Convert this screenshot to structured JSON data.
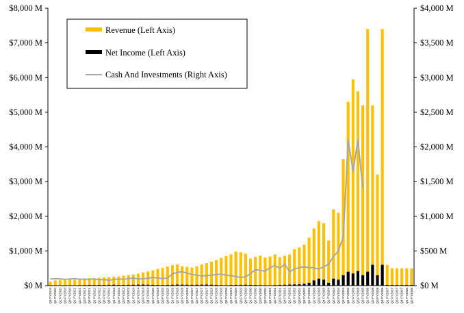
{
  "colors": {
    "revenue": "#ffc000",
    "net_income": "#000000",
    "cash": "#a6a6a6",
    "axis": "#000000"
  },
  "chart_data": {
    "type": "bar",
    "categories": [
      "Q4 FY2019",
      "Q1 FY2020",
      "Q2 FY2020",
      "Q3 FY2020",
      "Q4 FY2020",
      "Q1 FY2021",
      "Q2 FY2021",
      "Q3 FY2021",
      "Q4 FY2021",
      "Q1 FY2022",
      "Q2 FY2022",
      "Q3 FY2022",
      "Q4 FY2022",
      "Q1 FY2023",
      "Q2 FY2023",
      "Q3 FY2023",
      "Q4 FY2023",
      "Q1 FY2024",
      "Q2 FY2024",
      "Q3 FY2024",
      "Q4 FY2024",
      "Q1 FY2025",
      "Q2 FY2025",
      "Q3 FY2025",
      "Q4 FY2025",
      "Q1 FY2026",
      "Q2 FY2026",
      "Q3 FY2026",
      "Q4 FY2026",
      "Q1 FY2027",
      "Q2 FY2027",
      "Q3 FY2027",
      "Q4 FY2027",
      "Q1 FY2028",
      "Q2 FY2028",
      "Q3 FY2028",
      "Q4 FY2028",
      "Q1 FY2029",
      "Q2 FY2029",
      "Q3 FY2029",
      "Q4 FY2029",
      "Q1 FY2030",
      "Q2 FY2030",
      "Q3 FY2030",
      "Q4 FY2030",
      "Q1 FY2031",
      "Q2 FY2031",
      "Q3 FY2031",
      "Q4 FY2031",
      "Q1 FY2032",
      "Q2 FY2032",
      "Q3 FY2032",
      "Q4 FY2032",
      "Q1 FY2033",
      "Q2 FY2033",
      "Q3 FY2033",
      "Q4 FY2033",
      "Q1 FY2034",
      "Q2 FY2034",
      "Q3 FY2034",
      "Q4 FY2034",
      "Q1 FY2035",
      "Q2 FY2035",
      "Q3 FY2035",
      "Q4 FY2035",
      "Q1 FY2036",
      "Q2 FY2036",
      "Q3 FY2036",
      "Q4 FY2036",
      "Q1 FY2037",
      "Q2 FY2037",
      "Q3 FY2037",
      "Q4 FY2037",
      "Q1 FY2038",
      "Q2 FY2038"
    ],
    "series": [
      {
        "name": "Revenue (Left Axis)",
        "axis": "left",
        "type": "bar",
        "values": [
          110,
          150,
          160,
          170,
          180,
          165,
          185,
          200,
          215,
          200,
          225,
          235,
          245,
          255,
          265,
          285,
          300,
          320,
          345,
          380,
          410,
          440,
          480,
          510,
          550,
          590,
          610,
          560,
          540,
          520,
          560,
          610,
          650,
          690,
          740,
          800,
          850,
          900,
          980,
          960,
          920,
          780,
          830,
          860,
          810,
          840,
          900,
          820,
          860,
          900,
          1050,
          1100,
          1180,
          1380,
          1650,
          1860,
          1800,
          1300,
          2200,
          2100,
          3650,
          5300,
          5950,
          5600,
          5200,
          7400,
          5200,
          3200,
          7400,
          600,
          500,
          500,
          500,
          500,
          500
        ]
      },
      {
        "name": "Net Income (Left Axis)",
        "axis": "left",
        "type": "bar",
        "values": [
          -5,
          5,
          8,
          10,
          12,
          10,
          12,
          15,
          18,
          15,
          18,
          20,
          22,
          25,
          20,
          18,
          22,
          25,
          28,
          30,
          25,
          22,
          18,
          15,
          20,
          25,
          30,
          28,
          25,
          22,
          25,
          28,
          30,
          25,
          20,
          15,
          12,
          18,
          20,
          22,
          25,
          20,
          18,
          15,
          12,
          10,
          15,
          20,
          25,
          30,
          35,
          40,
          50,
          80,
          150,
          200,
          170,
          80,
          200,
          170,
          300,
          400,
          350,
          420,
          300,
          400,
          600,
          300,
          600,
          20,
          20,
          20,
          20,
          20,
          20
        ]
      },
      {
        "name": "Cash And Investments (Right Axis)",
        "axis": "right",
        "type": "line",
        "values": [
          95,
          100,
          98,
          90,
          95,
          100,
          92,
          95,
          90,
          98,
          85,
          88,
          75,
          90,
          95,
          92,
          100,
          110,
          95,
          100,
          105,
          120,
          110,
          100,
          110,
          170,
          190,
          200,
          180,
          160,
          150,
          140,
          145,
          150,
          160,
          165,
          150,
          145,
          130,
          120,
          125,
          175,
          230,
          220,
          210,
          260,
          290,
          250,
          310,
          200,
          240,
          260,
          270,
          260,
          255,
          240,
          270,
          310,
          420,
          500,
          700,
          2100,
          1650,
          2100,
          1400,
          null,
          null,
          null,
          null,
          null,
          null,
          null,
          null,
          null,
          null
        ]
      }
    ],
    "left_axis": {
      "range": [
        0,
        8000
      ],
      "ticks": [
        0,
        1000,
        2000,
        3000,
        4000,
        5000,
        6000,
        7000,
        8000
      ],
      "tick_labels": [
        "$0 M",
        "$1,000 M",
        "$2,000 M",
        "$3,000 M",
        "$4,000 M",
        "$5,000 M",
        "$6,000 M",
        "$7,000 M",
        "$8,000 M"
      ]
    },
    "right_axis": {
      "range": [
        0,
        4000
      ],
      "ticks": [
        0,
        500,
        1000,
        1500,
        2000,
        2500,
        3000,
        3500,
        4000
      ],
      "tick_labels": [
        "$0 M",
        "$500 M",
        "$1,000 M",
        "$1,500 M",
        "$2,000 M",
        "$2,500 M",
        "$3,000 M",
        "$3,500 M",
        "$4,000 M"
      ]
    },
    "legend": {
      "placement": "top-left",
      "entries": [
        "Revenue (Left Axis)",
        "Net Income (Left Axis)",
        "Cash And Investments (Right Axis)"
      ]
    },
    "grid": false,
    "title": "",
    "xlabel": "",
    "ylabel": ""
  }
}
